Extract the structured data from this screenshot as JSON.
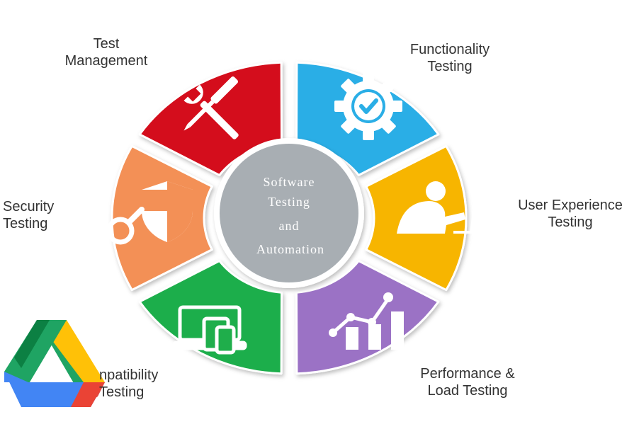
{
  "diagram": {
    "center": {
      "lines": [
        "Software",
        "Testing",
        "and",
        "Automation"
      ],
      "color": "#a8aeb3"
    },
    "segments": [
      {
        "id": "test-management",
        "label_lines": [
          "Test",
          "Management"
        ],
        "color": "#d40f1a",
        "icon": "wrench-screwdriver-icon"
      },
      {
        "id": "functionality-testing",
        "label_lines": [
          "Functionality",
          "Testing"
        ],
        "color": "#2aaee6",
        "icon": "gear-check-icon"
      },
      {
        "id": "user-experience-testing",
        "label_lines": [
          "User Experience",
          "Testing"
        ],
        "color": "#f7b500",
        "icon": "person-at-computer-icon"
      },
      {
        "id": "performance-load-testing",
        "label_lines": [
          "Performance &",
          "Load Testing"
        ],
        "color": "#9b72c5",
        "icon": "bar-chart-trend-icon"
      },
      {
        "id": "compatibility-testing",
        "label_lines": [
          "npatibility",
          "Testing"
        ],
        "color": "#1fae4b",
        "icon": "devices-icon"
      },
      {
        "id": "security-testing",
        "label_lines": [
          "Security",
          "Testing"
        ],
        "color": "#f39056",
        "icon": "shield-magnifier-icon"
      }
    ]
  },
  "overlay": {
    "icon": "google-drive-logo-icon",
    "colors": {
      "green": "#1fa463",
      "yellow": "#ffc107",
      "blue": "#4285f4",
      "red": "#ea4335",
      "dark_green": "#0c8043"
    }
  }
}
